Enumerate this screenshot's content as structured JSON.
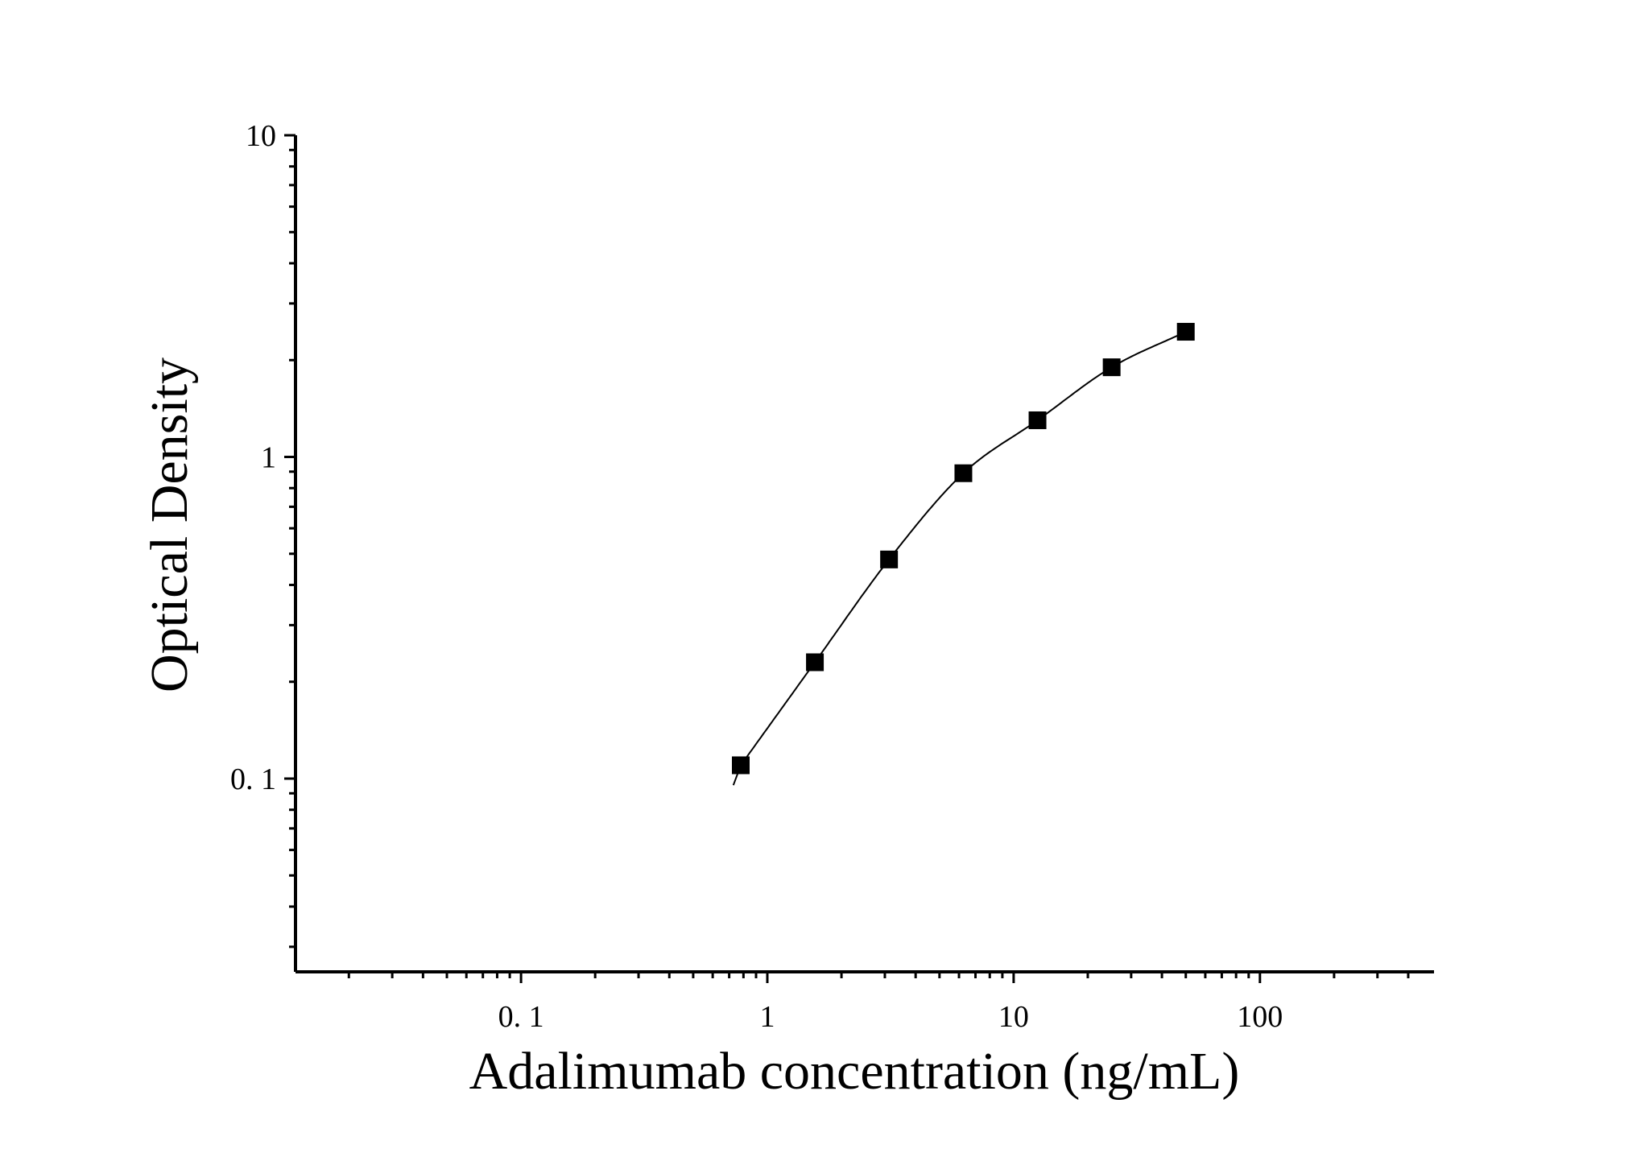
{
  "chart_data": {
    "type": "scatter",
    "title": "",
    "xlabel": "Adalimumab concentration (ng/mL)",
    "ylabel": "Optical Density",
    "xscale": "log",
    "yscale": "log",
    "xlim": [
      0.0125,
      450
    ],
    "ylim": [
      0.025,
      10
    ],
    "grid": false,
    "legend": "none",
    "x_ticks": [
      {
        "value": 0.1,
        "label": "0. 1"
      },
      {
        "value": 1,
        "label": "1"
      },
      {
        "value": 10,
        "label": "10"
      },
      {
        "value": 100,
        "label": "100"
      }
    ],
    "y_ticks": [
      {
        "value": 0.1,
        "label": "0. 1"
      },
      {
        "value": 1,
        "label": "1"
      },
      {
        "value": 10,
        "label": "10"
      }
    ],
    "series": [
      {
        "marker": "square",
        "color": "#000000",
        "x": [
          0.78,
          1.56,
          3.12,
          6.25,
          12.5,
          25,
          50
        ],
        "y": [
          0.11,
          0.23,
          0.48,
          0.89,
          1.3,
          1.9,
          2.45
        ]
      }
    ],
    "fit_curve": {
      "color": "#000000",
      "x_range": [
        0.78,
        50
      ]
    }
  }
}
